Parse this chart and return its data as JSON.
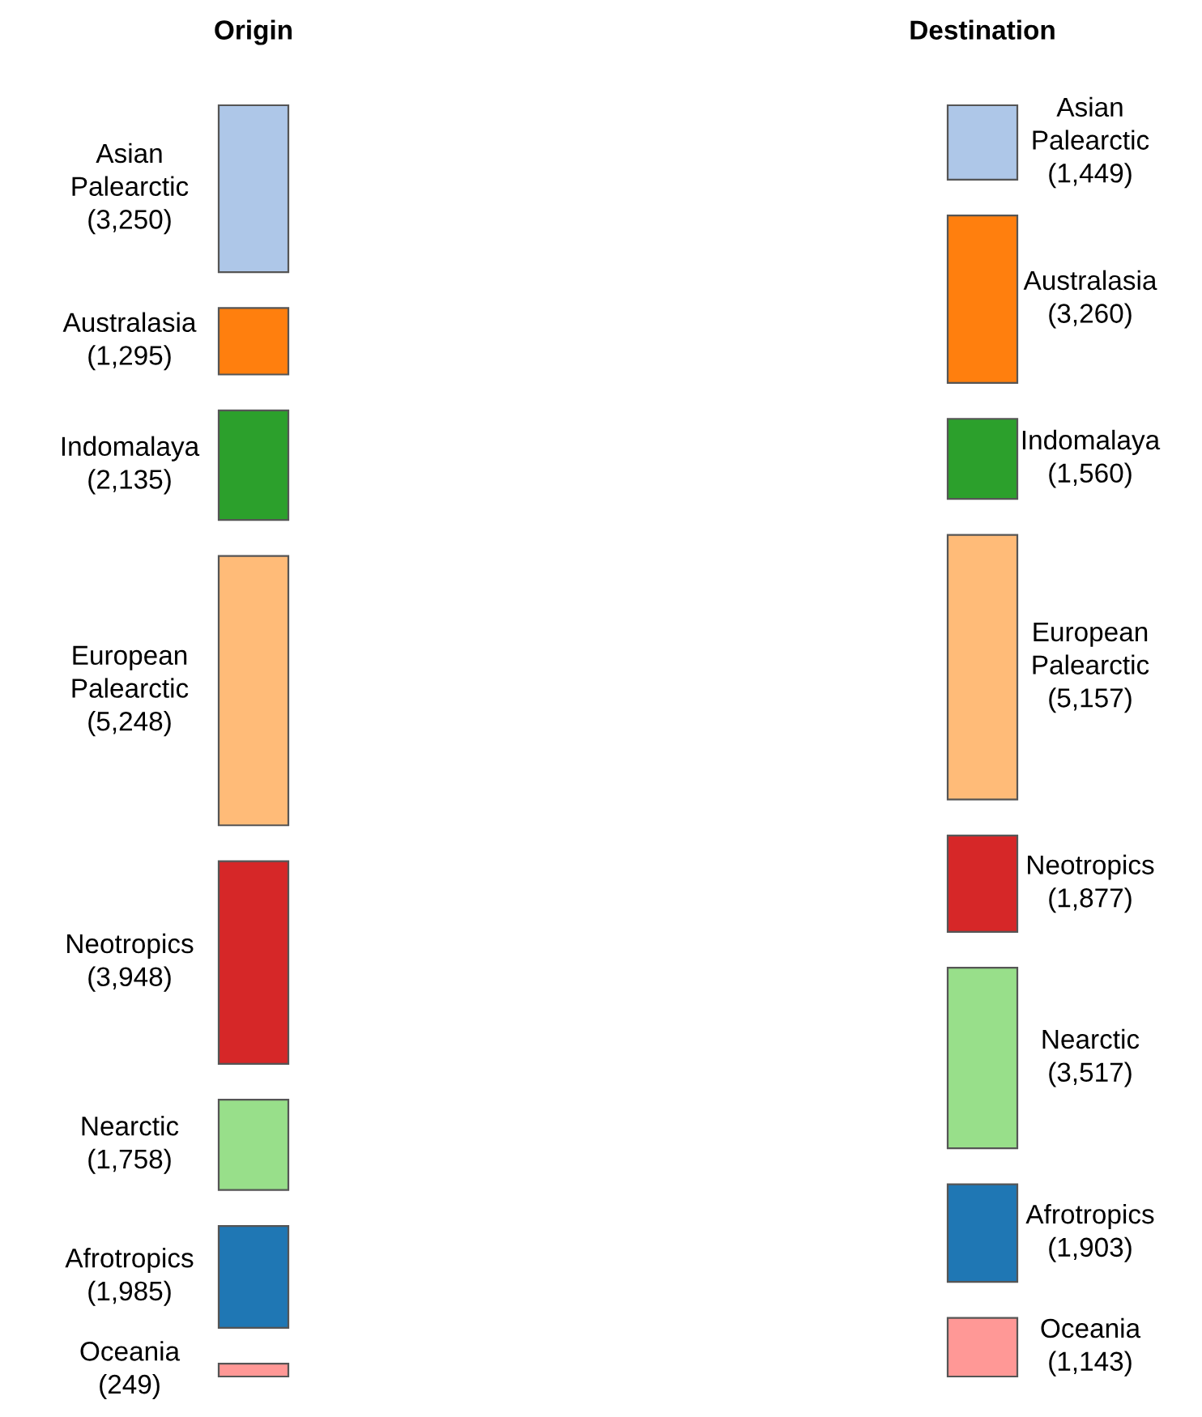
{
  "chart_data": {
    "type": "other",
    "categories": [
      "Asian Palearctic",
      "Australasia",
      "Indomalaya",
      "European Palearctic",
      "Neotropics",
      "Nearctic",
      "Afrotropics",
      "Oceania"
    ],
    "colors": [
      "#aec7e8",
      "#ff7f0e",
      "#2ca02c",
      "#ffbb78",
      "#d62728",
      "#98df8a",
      "#1f77b4",
      "#ff9896"
    ],
    "series": [
      {
        "name": "Origin",
        "values": [
          3250,
          1295,
          2135,
          5248,
          3948,
          1758,
          1985,
          249
        ],
        "value_labels": [
          "(3,250)",
          "(1,295)",
          "(2,135)",
          "(5,248)",
          "(3,948)",
          "(1,758)",
          "(1,985)",
          "(249)"
        ]
      },
      {
        "name": "Destination",
        "values": [
          1449,
          3260,
          1560,
          5157,
          1877,
          3517,
          1903,
          1143
        ],
        "value_labels": [
          "(1,449)",
          "(3,260)",
          "(1,560)",
          "(5,157)",
          "(1,877)",
          "(3,517)",
          "(1,903)",
          "(1,143)"
        ]
      }
    ]
  }
}
